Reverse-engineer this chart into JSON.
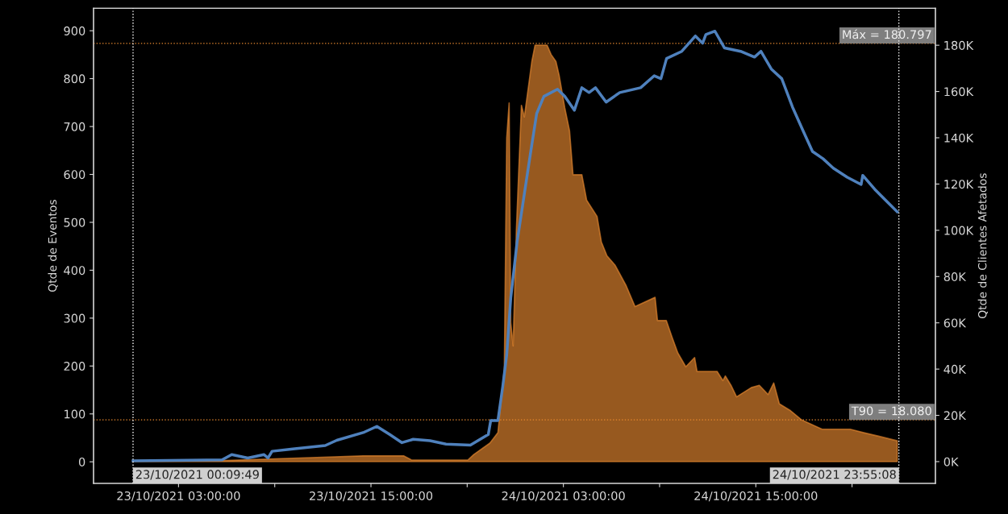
{
  "chart_data": {
    "type": "line",
    "ylabel": "Qtde de Eventos",
    "y2label": "Qtde de Clientes Afetados",
    "xlim": [
      "2021-10-22T21:42",
      "2021-10-25T02:12"
    ],
    "xticks": [
      {
        "value": "2021-10-23T03:00",
        "label": "23/10/2021 03:00:00"
      },
      {
        "value": "2021-10-23T09:00",
        "label": null
      },
      {
        "value": "2021-10-23T15:00",
        "label": "23/10/2021 15:00:00"
      },
      {
        "value": "2021-10-23T21:00",
        "label": null
      },
      {
        "value": "2021-10-24T03:00",
        "label": "24/10/2021 03:00:00"
      },
      {
        "value": "2021-10-24T09:00",
        "label": null
      },
      {
        "value": "2021-10-24T15:00",
        "label": "24/10/2021 15:00:00"
      },
      {
        "value": "2021-10-24T21:00",
        "label": null
      }
    ],
    "ylim": [
      -45,
      947
    ],
    "yticks": [
      0,
      100,
      200,
      300,
      400,
      500,
      600,
      700,
      800,
      900
    ],
    "y2lim": [
      -9400,
      196000
    ],
    "y2ticks": [
      {
        "value": 0,
        "label": "0K"
      },
      {
        "value": 20000,
        "label": "20K"
      },
      {
        "value": 40000,
        "label": "40K"
      },
      {
        "value": 60000,
        "label": "60K"
      },
      {
        "value": 80000,
        "label": "80K"
      },
      {
        "value": 100000,
        "label": "100K"
      },
      {
        "value": 120000,
        "label": "120K"
      },
      {
        "value": 140000,
        "label": "140K"
      },
      {
        "value": 160000,
        "label": "160K"
      },
      {
        "value": 180000,
        "label": "180K"
      }
    ],
    "grid": false,
    "legend": false,
    "series": [
      {
        "type": "area",
        "axis": "y2",
        "color": "#e8892f",
        "x": [
          "2021-10-23T00:10",
          "2021-10-23T06:00",
          "2021-10-23T12:22",
          "2021-10-23T14:31",
          "2021-10-23T17:02",
          "2021-10-23T17:32",
          "2021-10-23T21:03",
          "2021-10-23T21:25",
          "2021-10-23T22:25",
          "2021-10-23T22:55",
          "2021-10-23T23:19",
          "2021-10-23T23:28",
          "2021-10-23T23:37",
          "2021-10-23T23:43",
          "2021-10-23T23:52",
          "2021-10-24T00:04",
          "2021-10-24T00:23",
          "2021-10-24T00:34",
          "2021-10-24T01:02",
          "2021-10-24T01:14",
          "2021-10-24T01:41",
          "2021-10-24T01:59",
          "2021-10-24T02:14",
          "2021-10-24T02:32",
          "2021-10-24T02:44",
          "2021-10-24T03:05",
          "2021-10-24T03:23",
          "2021-10-24T03:36",
          "2021-10-24T04:09",
          "2021-10-24T04:27",
          "2021-10-24T05:06",
          "2021-10-24T05:22",
          "2021-10-24T05:43",
          "2021-10-24T06:13",
          "2021-10-24T06:55",
          "2021-10-24T07:28",
          "2021-10-24T08:43",
          "2021-10-24T08:52",
          "2021-10-24T09:25",
          "2021-10-24T09:46",
          "2021-10-24T10:08",
          "2021-10-24T10:38",
          "2021-10-24T11:11",
          "2021-10-24T11:20",
          "2021-10-24T12:35",
          "2021-10-24T12:57",
          "2021-10-24T13:06",
          "2021-10-24T13:27",
          "2021-10-24T13:48",
          "2021-10-24T14:43",
          "2021-10-24T15:13",
          "2021-10-24T15:46",
          "2021-10-24T16:07",
          "2021-10-24T16:28",
          "2021-10-24T17:10",
          "2021-10-24T17:52",
          "2021-10-24T19:08",
          "2021-10-24T20:53",
          "2021-10-24T21:44",
          "2021-10-24T22:39",
          "2021-10-24T23:49"
        ],
        "values": [
          500,
          500,
          2000,
          2500,
          2500,
          700,
          700,
          3100,
          8000,
          12500,
          40000,
          140000,
          155000,
          60000,
          50000,
          100000,
          154000,
          149000,
          173000,
          180000,
          180000,
          180000,
          176000,
          173000,
          167000,
          153000,
          143000,
          124000,
          124000,
          113000,
          106000,
          95000,
          89000,
          85000,
          76000,
          67000,
          71000,
          61000,
          61000,
          54000,
          47000,
          41000,
          45000,
          39000,
          39000,
          35000,
          37000,
          33000,
          28000,
          32000,
          33000,
          29000,
          34000,
          25000,
          22000,
          18000,
          14000,
          14000,
          12500,
          11000,
          9000
        ]
      },
      {
        "axis": "y",
        "color": "#4f81bd",
        "x": [
          "2021-10-23T00:10",
          "2021-10-23T05:43",
          "2021-10-23T06:19",
          "2021-10-23T07:19",
          "2021-10-23T08:20",
          "2021-10-23T08:35",
          "2021-10-23T08:50",
          "2021-10-23T10:08",
          "2021-10-23T12:09",
          "2021-10-23T12:52",
          "2021-10-23T14:31",
          "2021-10-23T15:22",
          "2021-10-23T16:10",
          "2021-10-23T16:56",
          "2021-10-23T17:38",
          "2021-10-23T18:41",
          "2021-10-23T19:41",
          "2021-10-23T21:12",
          "2021-10-23T22:19",
          "2021-10-23T22:28",
          "2021-10-23T22:55",
          "2021-10-23T23:13",
          "2021-10-23T23:28",
          "2021-10-23T23:43",
          "2021-10-24T00:07",
          "2021-10-24T00:56",
          "2021-10-24T01:20",
          "2021-10-24T01:47",
          "2021-10-24T02:38",
          "2021-10-24T03:05",
          "2021-10-24T03:41",
          "2021-10-24T04:09",
          "2021-10-24T04:36",
          "2021-10-24T05:00",
          "2021-10-24T05:40",
          "2021-10-24T06:31",
          "2021-10-24T07:49",
          "2021-10-24T08:40",
          "2021-10-24T09:05",
          "2021-10-24T09:26",
          "2021-10-24T10:23",
          "2021-10-24T11:14",
          "2021-10-24T11:41",
          "2021-10-24T11:53",
          "2021-10-24T12:27",
          "2021-10-24T13:03",
          "2021-10-24T14:03",
          "2021-10-24T14:55",
          "2021-10-24T15:19",
          "2021-10-24T15:58",
          "2021-10-24T16:37",
          "2021-10-24T17:17",
          "2021-10-24T17:56",
          "2021-10-24T18:32",
          "2021-10-24T19:11",
          "2021-10-24T19:50",
          "2021-10-24T20:42",
          "2021-10-24T21:34",
          "2021-10-24T21:40",
          "2021-10-24T22:25",
          "2021-10-24T23:04",
          "2021-10-24T23:49"
        ],
        "values": [
          2,
          4,
          15,
          8,
          15,
          8,
          22,
          27,
          34,
          45,
          61,
          74,
          57,
          40,
          47,
          44,
          37,
          35,
          57,
          86,
          86,
          157,
          224,
          342,
          460,
          641,
          727,
          763,
          778,
          763,
          734,
          781,
          771,
          781,
          751,
          771,
          781,
          806,
          800,
          842,
          857,
          889,
          874,
          892,
          899,
          864,
          857,
          845,
          857,
          820,
          800,
          741,
          692,
          648,
          633,
          613,
          594,
          579,
          598,
          569,
          547,
          522
        ]
      }
    ],
    "ref_lines": [
      {
        "axis": "y2",
        "value": 180797,
        "label": "Máx = 180.797",
        "color": "#e8892f",
        "line_style": "dotted"
      },
      {
        "axis": "y2",
        "value": 18080,
        "label": "T90 = 18.080",
        "color": "#e8892f",
        "line_style": "dotted"
      },
      {
        "axis": "x",
        "value": "2021-10-23T00:09:49",
        "label": "23/10/2021 00:09:49",
        "color": "#ffffff",
        "line_style": "dotted"
      },
      {
        "axis": "x",
        "value": "2021-10-24T23:55:08",
        "label": "24/10/2021 23:55:08",
        "color": "#ffffff",
        "line_style": "dotted"
      }
    ]
  }
}
